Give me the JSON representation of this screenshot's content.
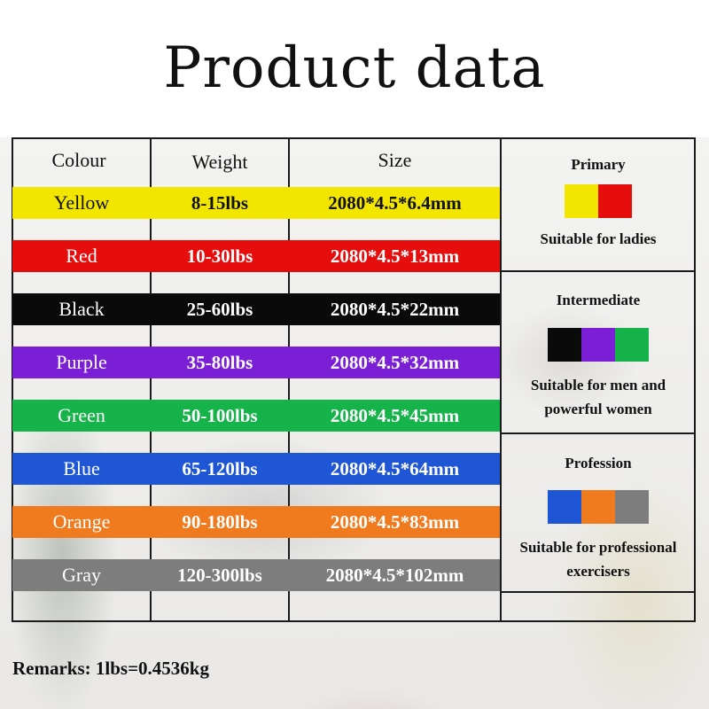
{
  "title": "Product data",
  "table": {
    "headers": {
      "colour": "Colour",
      "weight": "Weight",
      "size": "Size"
    },
    "rows": [
      {
        "colour": "Yellow",
        "weight": "8-15lbs",
        "size": "2080*4.5*6.4mm",
        "band_color": "#f2e600",
        "text_color": "#111111"
      },
      {
        "colour": "Red",
        "weight": "10-30lbs",
        "size": "2080*4.5*13mm",
        "band_color": "#e60d0d",
        "text_color": "#ffffff"
      },
      {
        "colour": "Black",
        "weight": "25-60lbs",
        "size": "2080*4.5*22mm",
        "band_color": "#0a0a0a",
        "text_color": "#ffffff"
      },
      {
        "colour": "Purple",
        "weight": "35-80lbs",
        "size": "2080*4.5*32mm",
        "band_color": "#7a1fd6",
        "text_color": "#ffffff"
      },
      {
        "colour": "Green",
        "weight": "50-100lbs",
        "size": "2080*4.5*45mm",
        "band_color": "#16b24a",
        "text_color": "#ffffff"
      },
      {
        "colour": "Blue",
        "weight": "65-120lbs",
        "size": "2080*4.5*64mm",
        "band_color": "#1f56d6",
        "text_color": "#ffffff"
      },
      {
        "colour": "Orange",
        "weight": "90-180lbs",
        "size": "2080*4.5*83mm",
        "band_color": "#f07a1e",
        "text_color": "#ffffff"
      },
      {
        "colour": "Gray",
        "weight": "120-300lbs",
        "size": "2080*4.5*102mm",
        "band_color": "#7d7d7d",
        "text_color": "#ffffff"
      }
    ]
  },
  "groups": [
    {
      "title": "Primary",
      "description": [
        "Suitable for ladies"
      ],
      "swatches": [
        "#f2e600",
        "#e60d0d"
      ]
    },
    {
      "title": "Intermediate",
      "description": [
        "Suitable for men and",
        "powerful women"
      ],
      "swatches": [
        "#0a0a0a",
        "#7a1fd6",
        "#16b24a"
      ]
    },
    {
      "title": "Profession",
      "description": [
        "Suitable for professional",
        "exercisers"
      ],
      "swatches": [
        "#1f56d6",
        "#f07a1e",
        "#7d7d7d"
      ]
    }
  ],
  "remarks": "Remarks: 1lbs=0.4536kg"
}
